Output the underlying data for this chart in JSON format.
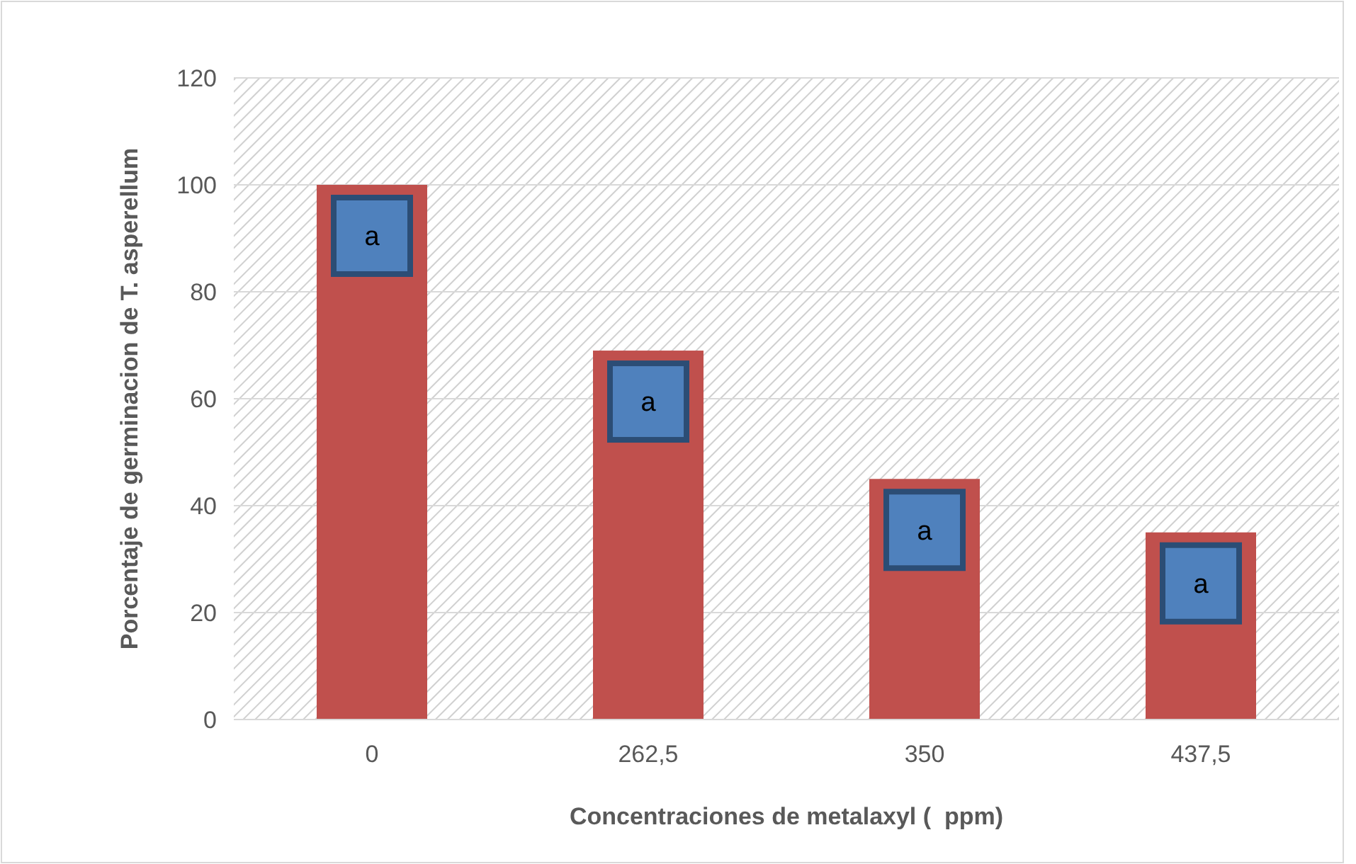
{
  "chart_data": {
    "type": "bar",
    "xlabel": "Concentraciones de metalaxyl (  ppm)",
    "ylabel": "Porcentaje de germinacion de T. asperellum",
    "categories": [
      "0",
      "262,5",
      "350",
      "437,5"
    ],
    "values": [
      100,
      69,
      45,
      35
    ],
    "color": "#c0504d",
    "ylim": [
      0,
      120
    ],
    "yticks": [
      0,
      20,
      40,
      60,
      80,
      100,
      120
    ],
    "grid": "y",
    "annotations": [
      "a",
      "a",
      "a",
      "a"
    ]
  }
}
